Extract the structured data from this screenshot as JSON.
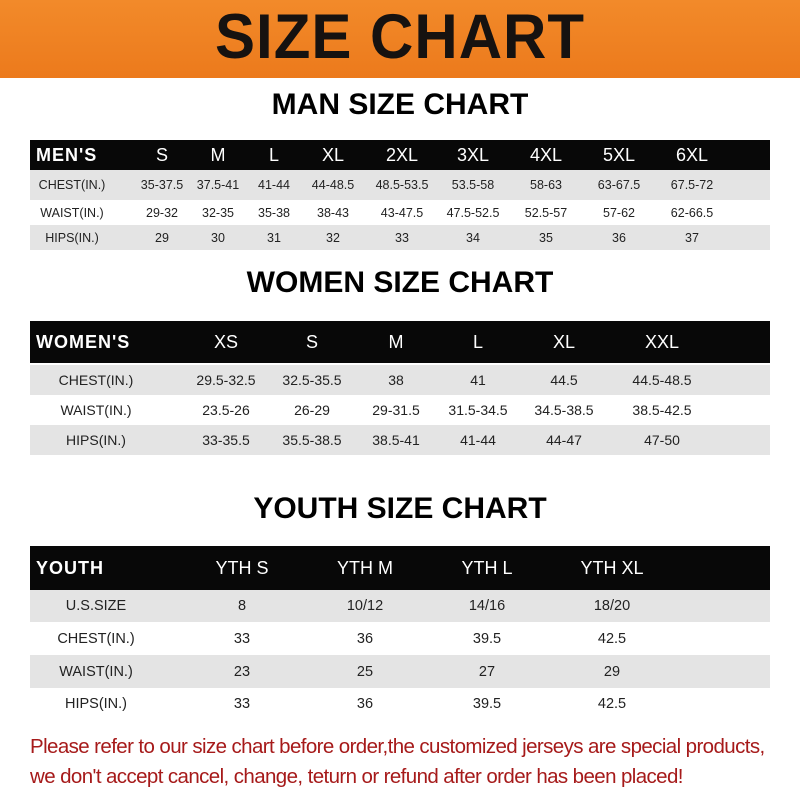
{
  "banner": {
    "title": "SIZE CHART",
    "color": "#ef8224"
  },
  "men": {
    "title": "MAN SIZE CHART",
    "header": [
      "MEN'S",
      "S",
      "M",
      "L",
      "XL",
      "2XL",
      "3XL",
      "4XL",
      "5XL",
      "6XL"
    ],
    "rows": [
      [
        "CHEST(IN.)",
        "35-37.5",
        "37.5-41",
        "41-44",
        "44-48.5",
        "48.5-53.5",
        "53.5-58",
        "58-63",
        "63-67.5",
        "67.5-72"
      ],
      [
        "WAIST(IN.)",
        "29-32",
        "32-35",
        "35-38",
        "38-43",
        "43-47.5",
        "47.5-52.5",
        "52.5-57",
        "57-62",
        "62-66.5"
      ],
      [
        "HIPS(IN.)",
        "29",
        "30",
        "31",
        "32",
        "33",
        "34",
        "35",
        "36",
        "37"
      ]
    ]
  },
  "women": {
    "title": "WOMEN SIZE CHART",
    "header": [
      "WOMEN'S",
      "XS",
      "S",
      "M",
      "L",
      "XL",
      "XXL"
    ],
    "rows": [
      [
        "CHEST(IN.)",
        "29.5-32.5",
        "32.5-35.5",
        "38",
        "41",
        "44.5",
        "44.5-48.5"
      ],
      [
        "WAIST(IN.)",
        "23.5-26",
        "26-29",
        "29-31.5",
        "31.5-34.5",
        "34.5-38.5",
        "38.5-42.5"
      ],
      [
        "HIPS(IN.)",
        "33-35.5",
        "35.5-38.5",
        "38.5-41",
        "41-44",
        "44-47",
        "47-50"
      ]
    ]
  },
  "youth": {
    "title": "YOUTH SIZE CHART",
    "header": [
      "YOUTH",
      "YTH S",
      "YTH M",
      "YTH L",
      "YTH XL"
    ],
    "rows": [
      [
        "U.S.SIZE",
        "8",
        "10/12",
        "14/16",
        "18/20"
      ],
      [
        "CHEST(IN.)",
        "33",
        "36",
        "39.5",
        "42.5"
      ],
      [
        "WAIST(IN.)",
        "23",
        "25",
        "27",
        "29"
      ],
      [
        "HIPS(IN.)",
        "33",
        "36",
        "39.5",
        "42.5"
      ]
    ]
  },
  "notice": {
    "line1": "Please refer to our size chart before order,the customized jerseys are special products,",
    "line2": "we don't accept cancel, change, teturn or refund after order has been placed!",
    "color": "#a61a1a"
  }
}
